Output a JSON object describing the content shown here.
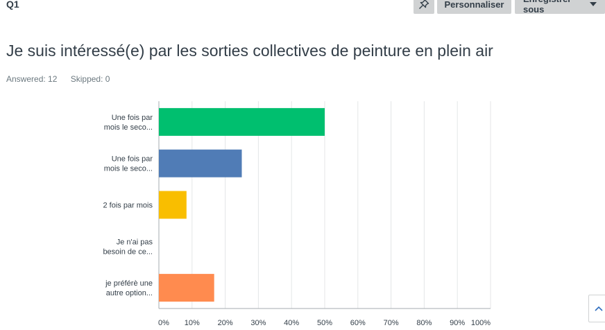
{
  "header": {
    "question_number": "Q1",
    "pin_icon": "pin-icon",
    "customize_label": "Personnaliser",
    "save_as_label": "Enregistrer sous"
  },
  "question": {
    "title": "Je suis intéressé(e) par les sorties collectives de peinture en plein air",
    "answered": "Answered: 12",
    "skipped": "Skipped: 0"
  },
  "chart_data": {
    "type": "bar",
    "orientation": "horizontal",
    "categories": [
      [
        "Une fois par",
        "mois le seco..."
      ],
      [
        "Une fois par",
        "mois le seco..."
      ],
      [
        "2 fois par mois"
      ],
      [
        "Je n'ai pas",
        "besoin de ce..."
      ],
      [
        "je préférè une",
        "autre option..."
      ]
    ],
    "values": [
      50,
      25,
      8.33,
      0,
      16.67
    ],
    "colors": [
      "#00bf6f",
      "#507cb6",
      "#f9be00",
      "#6bc8cd",
      "#ff8b4f"
    ],
    "xlim": [
      0,
      100
    ],
    "xticks": [
      "0%",
      "10%",
      "20%",
      "30%",
      "40%",
      "50%",
      "60%",
      "70%",
      "80%",
      "90%",
      "100%"
    ],
    "grid": true
  }
}
